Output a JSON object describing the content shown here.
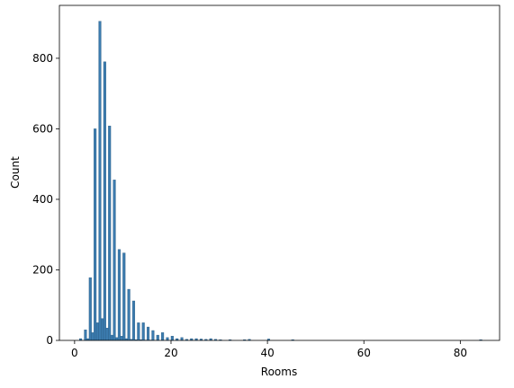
{
  "chart_data": {
    "type": "histogram",
    "xlabel": "Rooms",
    "ylabel": "Count",
    "color": "#3b7bae",
    "edgecolor": "#2a5d85",
    "bins": [
      1,
      1.5,
      2,
      2.5,
      3,
      3.5,
      4,
      4.5,
      5,
      5.5,
      6,
      6.5,
      7,
      7.5,
      8,
      8.5,
      9,
      9.5,
      10,
      10.5,
      11,
      11.5,
      12,
      12.5,
      13,
      13.5,
      14,
      14.5,
      15,
      15.5,
      16,
      16.5,
      17,
      17.5,
      18,
      18.5,
      19,
      19.5,
      20,
      20.5,
      21,
      21.5,
      22,
      22.5,
      23,
      23.5,
      24,
      24.5,
      25,
      25.5,
      26,
      26.5,
      27,
      27.5,
      28,
      28.5,
      29,
      29.5,
      30,
      30.5,
      32,
      32.5,
      35,
      35.5,
      36,
      36.5,
      40,
      40.5,
      45,
      45.5,
      84,
      84.5
    ],
    "values": [
      5,
      0,
      30,
      5,
      178,
      22,
      600,
      50,
      905,
      62,
      790,
      35,
      608,
      15,
      455,
      8,
      258,
      12,
      248,
      5,
      145,
      3,
      112,
      2,
      50,
      2,
      50,
      1,
      38,
      1,
      28,
      0,
      15,
      0,
      22,
      0,
      8,
      0,
      12,
      0,
      5,
      0,
      8,
      0,
      3,
      0,
      5,
      0,
      5,
      0,
      4,
      0,
      3,
      0,
      5,
      0,
      3,
      0,
      2,
      0,
      2,
      0,
      2,
      0,
      3,
      0,
      4,
      0,
      2,
      0,
      2
    ],
    "xlim": [
      -3.15,
      88.15
    ],
    "ylim": [
      0,
      950
    ],
    "xticks": [
      0,
      20,
      40,
      60,
      80
    ],
    "yticks": [
      0,
      200,
      400,
      600,
      800
    ]
  }
}
